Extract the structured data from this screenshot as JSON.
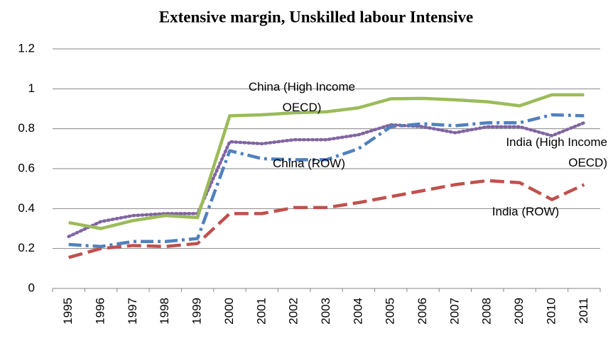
{
  "chart_data": {
    "type": "line",
    "title": "Extensive margin, Unskilled labour Intensive",
    "categories": [
      "1995",
      "1996",
      "1997",
      "1998",
      "1999",
      "2000",
      "2001",
      "2002",
      "2003",
      "2004",
      "2005",
      "2006",
      "2007",
      "2008",
      "2009",
      "2010",
      "2011"
    ],
    "ylim": [
      0,
      1.2
    ],
    "yticks": [
      0,
      0.2,
      0.4,
      0.6,
      0.8,
      1,
      1.2
    ],
    "grid": true,
    "series": [
      {
        "name": "China (High Income OECD)",
        "color": "#9bbb59",
        "line_style": "solid",
        "values": [
          0.33,
          0.3,
          0.34,
          0.365,
          0.355,
          0.865,
          0.87,
          0.88,
          0.885,
          0.905,
          0.95,
          0.952,
          0.945,
          0.935,
          0.915,
          0.97,
          0.97
        ]
      },
      {
        "name": "China (ROW)",
        "color": "#4f81bd",
        "line_style": "dash-dot",
        "values": [
          0.22,
          0.21,
          0.235,
          0.235,
          0.25,
          0.69,
          0.65,
          0.645,
          0.645,
          0.7,
          0.81,
          0.825,
          0.815,
          0.83,
          0.83,
          0.87,
          0.865
        ]
      },
      {
        "name": "India (High Income OECD)",
        "color": "#8064a2",
        "line_style": "dot",
        "values": [
          0.26,
          0.335,
          0.365,
          0.375,
          0.375,
          0.735,
          0.725,
          0.745,
          0.745,
          0.77,
          0.82,
          0.81,
          0.78,
          0.81,
          0.81,
          0.765,
          0.83
        ]
      },
      {
        "name": "India (ROW)",
        "color": "#c0504d",
        "line_style": "dash",
        "values": [
          0.155,
          0.2,
          0.215,
          0.21,
          0.225,
          0.375,
          0.375,
          0.405,
          0.405,
          0.43,
          0.46,
          0.49,
          0.52,
          0.54,
          0.53,
          0.445,
          0.52
        ]
      }
    ]
  }
}
